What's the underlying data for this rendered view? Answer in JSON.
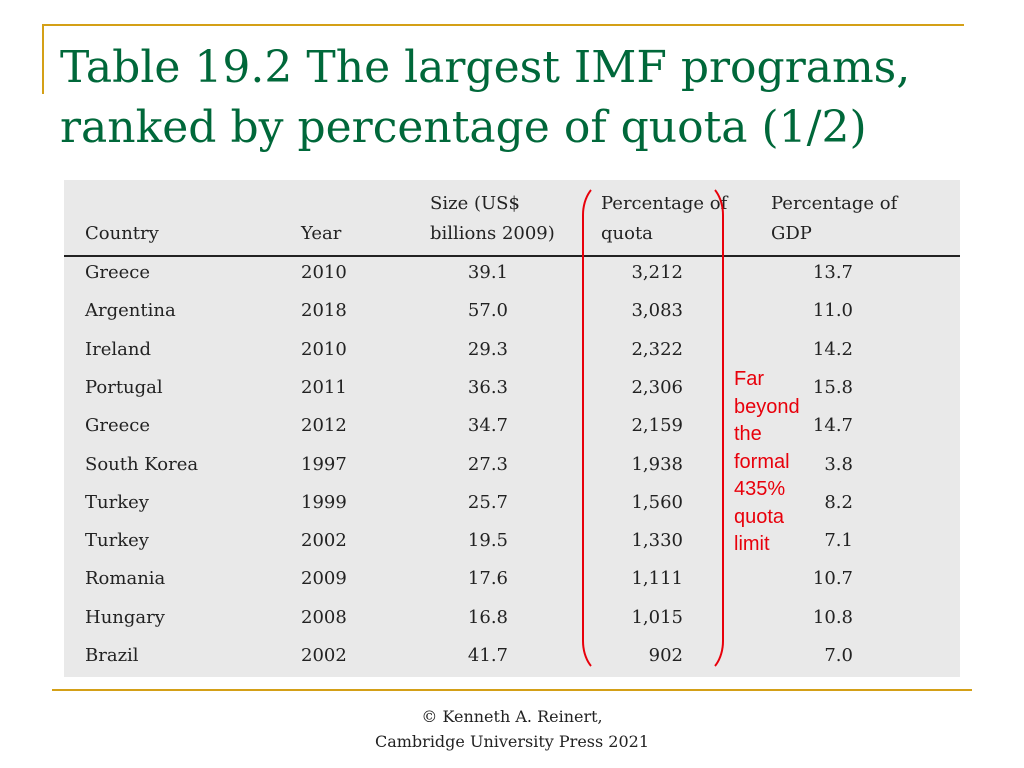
{
  "slide": {
    "title_line1": "Table 19.2 The largest IMF programs,",
    "title_line2": "ranked by percentage of quota (1/2)",
    "annotation": [
      "Far",
      "beyond",
      "the",
      "formal",
      "435%",
      "quota",
      "limit"
    ],
    "footer_line1": "© Kenneth A. Reinert,",
    "footer_line2": "Cambridge University Press 2021",
    "colors": {
      "title": "#00683a",
      "rule": "#d4a017",
      "annotation": "#e8000b",
      "panel": "#e9e9e9"
    }
  },
  "table": {
    "headers": [
      {
        "line1": "",
        "line2": "Country"
      },
      {
        "line1": "",
        "line2": "Year"
      },
      {
        "line1": "Size (US$",
        "line2": "billions 2009)"
      },
      {
        "line1": "Percentage of",
        "line2": "quota"
      },
      {
        "line1": "Percentage of",
        "line2": "GDP"
      }
    ],
    "rows": [
      [
        "Greece",
        "2010",
        "39.1",
        "3,212",
        "13.7"
      ],
      [
        "Argentina",
        "2018",
        "57.0",
        "3,083",
        "11.0"
      ],
      [
        "Ireland",
        "2010",
        "29.3",
        "2,322",
        "14.2"
      ],
      [
        "Portugal",
        "2011",
        "36.3",
        "2,306",
        "15.8"
      ],
      [
        "Greece",
        "2012",
        "34.7",
        "2,159",
        "14.7"
      ],
      [
        "South Korea",
        "1997",
        "27.3",
        "1,938",
        "3.8"
      ],
      [
        "Turkey",
        "1999",
        "25.7",
        "1,560",
        "8.2"
      ],
      [
        "Turkey",
        "2002",
        "19.5",
        "1,330",
        "7.1"
      ],
      [
        "Romania",
        "2009",
        "17.6",
        "1,111",
        "10.7"
      ],
      [
        "Hungary",
        "2008",
        "16.8",
        "1,015",
        "10.8"
      ],
      [
        "Brazil",
        "2002",
        "41.7",
        "902",
        "7.0"
      ]
    ]
  }
}
